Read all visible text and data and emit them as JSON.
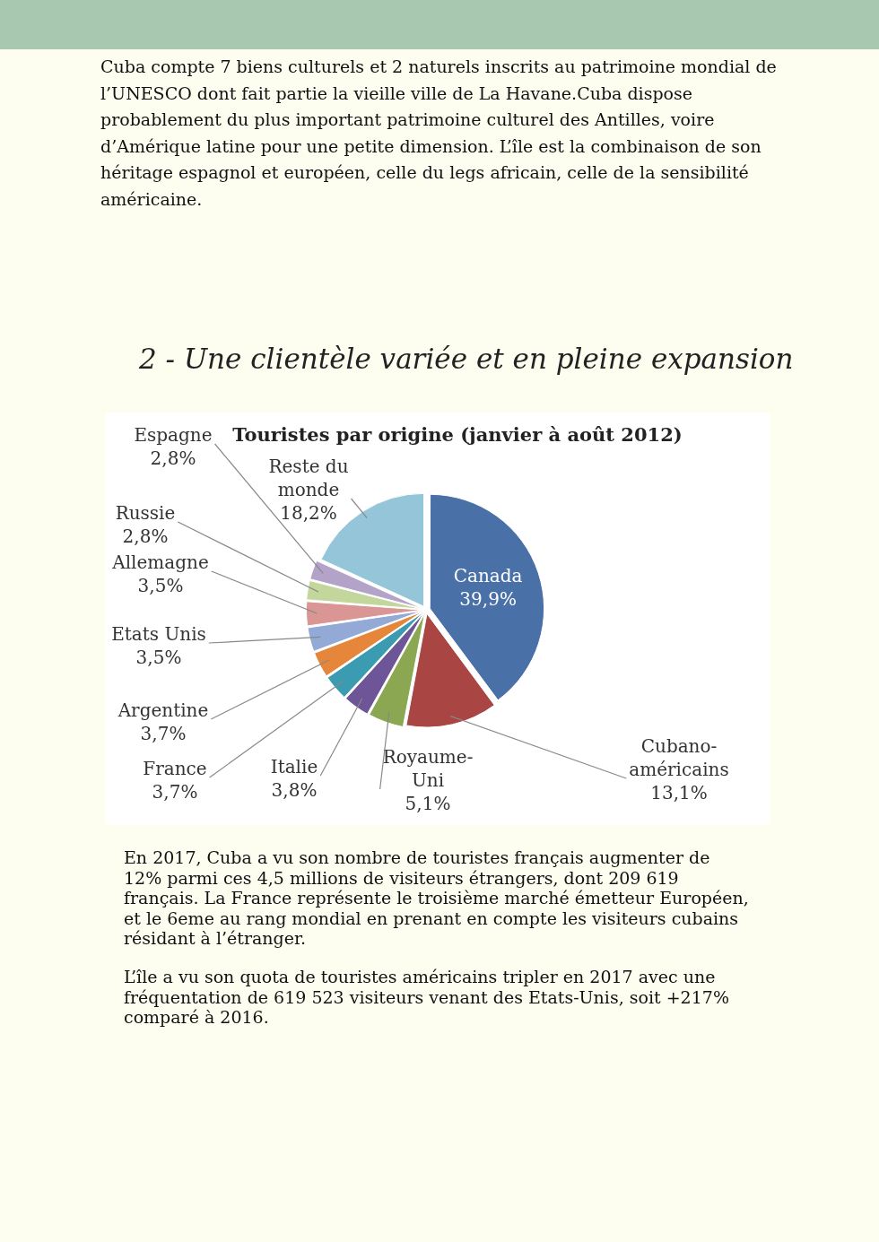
{
  "chart_data": {
    "type": "pie",
    "title": "Touristes par origine (janvier à août 2012)",
    "annotations": [
      "Cuba compte 7 biens culturels et 2 naturels inscrits au patrimoine mondial de l’UNESCO dont fait partie la vieille ville de La Havane.Cuba dispose probablement du plus important patrimoine culturel des Antilles, voire d’Amérique latine pour une petite dimension. L’île est la combinaison de son héritage espagnol et européen, celle du legs africain, celle de la sensibilité américaine.",
      "2 - Une clientèle variée et en pleine expansion",
      "En 2017, Cuba a vu son nombre de touristes français augmenter de 12% parmi ces 4,5 millions de visiteurs étrangers, dont 209 619 français. La France représente le troisième marché émetteur Européen, et le 6eme au rang mondial en prenant en compte les visiteurs cubains résidant à l’étranger.",
      "L’île a vu son quota de touristes américains tripler en 2017 avec une fréquentation de 619 523 visiteurs venant des Etats-Unis, soit +217% comparé à 2016."
    ],
    "categories": [
      "Canada",
      "Cubano-américains",
      "Royaume-Uni",
      "Italie",
      "France",
      "Argentine",
      "Etats Unis",
      "Allemagne",
      "Russie",
      "Espagne",
      "Reste du monde"
    ],
    "values": [
      39.9,
      13.1,
      5.1,
      3.8,
      3.7,
      3.7,
      3.5,
      3.5,
      2.8,
      2.8,
      18.2
    ],
    "value_labels": [
      "39,9%",
      "13,1%",
      "5,1%",
      "3,8%",
      "3,7%",
      "3,7%",
      "3,5%",
      "3,5%",
      "2,8%",
      "2,8%",
      "18,2%"
    ],
    "colors": [
      "#4a70a8",
      "#a94543",
      "#8ba751",
      "#6e5597",
      "#3b9bb1",
      "#e6863a",
      "#94aad6",
      "#d99694",
      "#c3d69b",
      "#b3a3c8",
      "#95c5d9"
    ]
  }
}
